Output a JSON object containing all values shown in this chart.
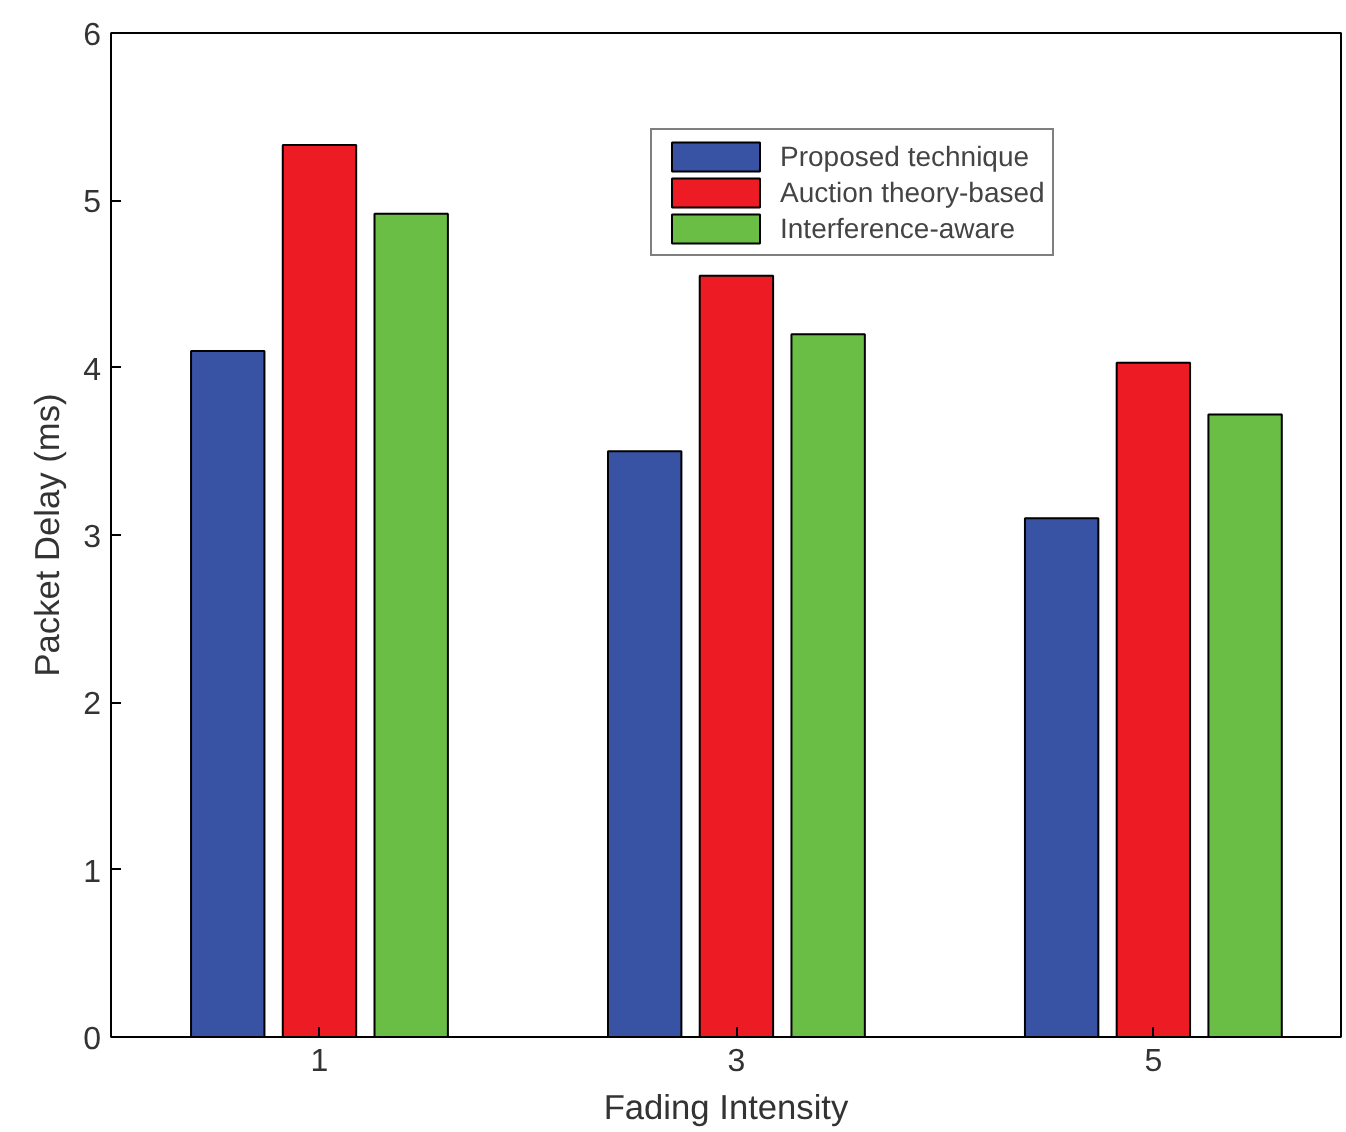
{
  "chart_data": {
    "type": "bar",
    "xlabel": "Fading Intensity",
    "ylabel": "Packet Delay (ms)",
    "categories": [
      "1",
      "3",
      "5"
    ],
    "series": [
      {
        "name": "Proposed technique",
        "color": "#3953a4",
        "values": [
          4.1,
          3.5,
          3.1
        ]
      },
      {
        "name": "Auction theory-based",
        "color": "#ed1c24",
        "values": [
          5.33,
          4.55,
          4.03
        ]
      },
      {
        "name": "Interference-aware",
        "color": "#6abd45",
        "values": [
          4.92,
          4.2,
          3.72
        ]
      }
    ],
    "ylim": [
      0,
      6
    ],
    "yticks": [
      0,
      1,
      2,
      3,
      4,
      5,
      6
    ],
    "grid": false,
    "legend": "top right"
  }
}
